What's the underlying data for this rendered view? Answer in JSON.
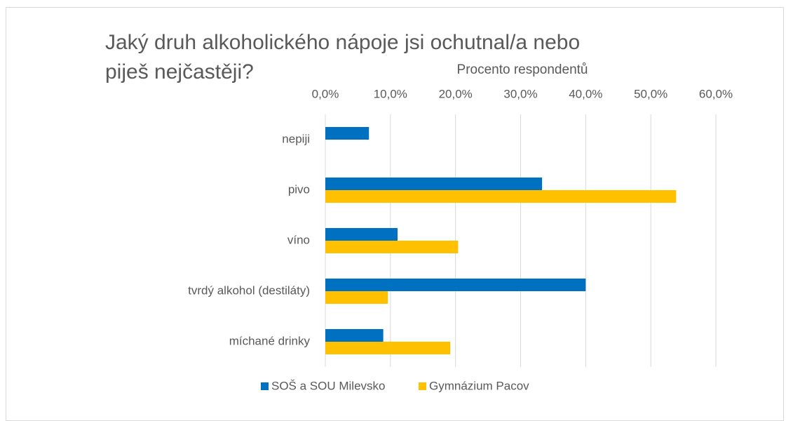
{
  "chart_data": {
    "type": "hbar",
    "title": "Jaký druh alkoholického nápoje jsi ochutnal/a nebo piješ nejčastěji?",
    "x_label": "Procento respondentů",
    "categories": [
      "nepiji",
      "pivo",
      "víno",
      "tvrdý alkohol (destiláty)",
      "míchané drinky"
    ],
    "series": [
      {
        "name": "SOŠ a SOU Milevsko",
        "color": "#0070c0",
        "values": [
          6.7,
          33.3,
          11.1,
          40.0,
          8.9
        ]
      },
      {
        "name": "Gymnázium Pacov",
        "color": "#ffc000",
        "values": [
          0,
          53.9,
          20.4,
          9.6,
          19.2
        ]
      }
    ],
    "xlim": [
      0,
      60
    ],
    "xticks": [
      {
        "value": 0,
        "label": "0,0%"
      },
      {
        "value": 10,
        "label": "10,0%"
      },
      {
        "value": 20,
        "label": "20,0%"
      },
      {
        "value": 30,
        "label": "30,0%"
      },
      {
        "value": 40,
        "label": "40,0%"
      },
      {
        "value": 50,
        "label": "50,0%"
      },
      {
        "value": 60,
        "label": "60,0%"
      }
    ],
    "grid": true,
    "legend": "bottom"
  }
}
